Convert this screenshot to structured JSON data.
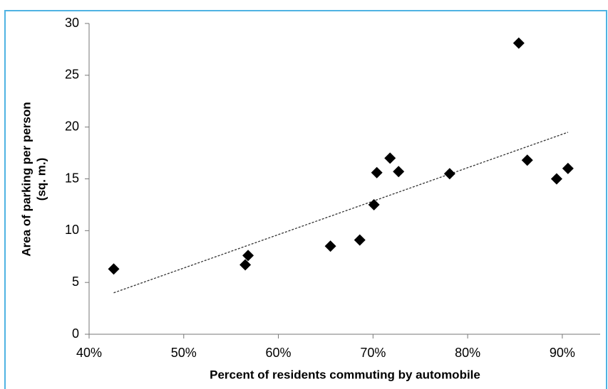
{
  "chart_data": {
    "type": "scatter",
    "xlabel": "Percent of residents commuting by automobile",
    "ylabel": [
      "Area of parking per person",
      "(sq. m.)"
    ],
    "x": [
      42.6,
      56.5,
      56.8,
      65.5,
      68.6,
      70.1,
      70.4,
      71.8,
      72.7,
      78.1,
      85.4,
      86.3,
      89.4,
      90.6
    ],
    "values": [
      6.3,
      6.7,
      7.6,
      8.5,
      9.1,
      12.5,
      15.6,
      17.0,
      15.7,
      15.5,
      28.1,
      16.8,
      15.0,
      16.0
    ],
    "color": "#000000",
    "trendline": {
      "x": [
        42.6,
        90.6
      ],
      "y": [
        4.0,
        19.5
      ],
      "color": "#333333"
    },
    "xlim": [
      40,
      94
    ],
    "ylim": [
      0,
      30
    ],
    "xticks": [
      {
        "value": 40,
        "label": "40%"
      },
      {
        "value": 50,
        "label": "50%"
      },
      {
        "value": 60,
        "label": "60%"
      },
      {
        "value": 70,
        "label": "70%"
      },
      {
        "value": 80,
        "label": "80%"
      },
      {
        "value": 90,
        "label": "90%"
      }
    ],
    "yticks": [
      0,
      5,
      10,
      15,
      20,
      25,
      30
    ],
    "grid": false
  }
}
